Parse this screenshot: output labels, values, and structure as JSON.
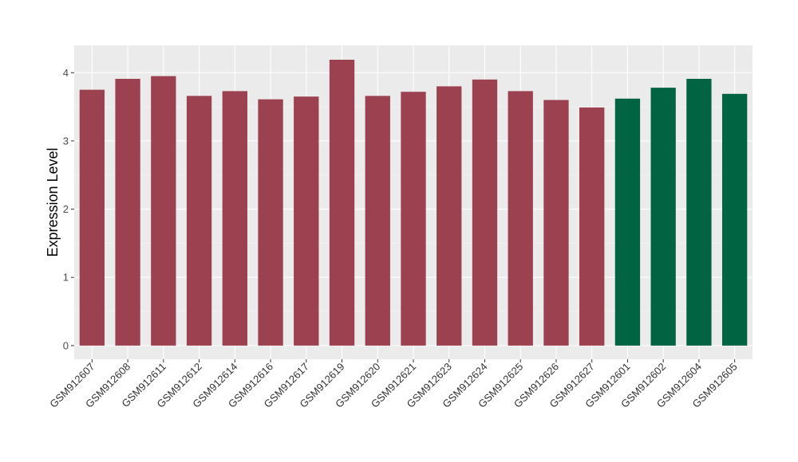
{
  "chart_data": {
    "type": "bar",
    "title": "",
    "xlabel": "",
    "ylabel": "Expression Level",
    "ylim": [
      -0.2,
      4.4
    ],
    "yticks": [
      0,
      1,
      2,
      3,
      4
    ],
    "grid": true,
    "legend": "none",
    "colors": {
      "group_a": "#9b4150",
      "group_b": "#006442",
      "panel_bg": "#ebebeb"
    },
    "categories": [
      "GSM912607",
      "GSM912608",
      "GSM912611",
      "GSM912612",
      "GSM912614",
      "GSM912616",
      "GSM912617",
      "GSM912619",
      "GSM912620",
      "GSM912621",
      "GSM912623",
      "GSM912624",
      "GSM912625",
      "GSM912626",
      "GSM912627",
      "GSM912601",
      "GSM912602",
      "GSM912604",
      "GSM912605"
    ],
    "values": [
      3.75,
      3.91,
      3.95,
      3.66,
      3.73,
      3.61,
      3.65,
      4.19,
      3.66,
      3.72,
      3.8,
      3.9,
      3.73,
      3.6,
      3.49,
      3.62,
      3.78,
      3.91,
      3.69
    ],
    "groups": [
      "a",
      "a",
      "a",
      "a",
      "a",
      "a",
      "a",
      "a",
      "a",
      "a",
      "a",
      "a",
      "a",
      "a",
      "a",
      "b",
      "b",
      "b",
      "b"
    ]
  }
}
